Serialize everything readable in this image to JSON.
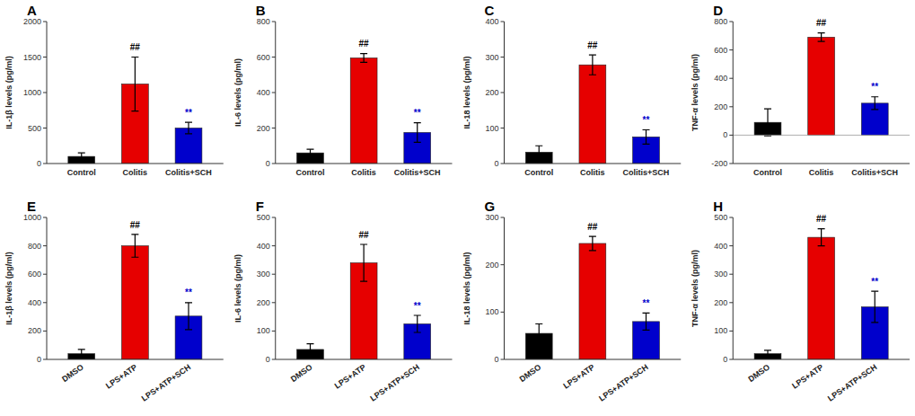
{
  "chart_data": [
    {
      "type": "bar",
      "title": "A",
      "ylabel": "IL-1β levels (pg/ml)",
      "categories": [
        "Control",
        "Colitis",
        "Colitis+SCH"
      ],
      "values": [
        100,
        1120,
        500
      ],
      "errors": [
        50,
        380,
        80
      ],
      "colors": [
        "#000000",
        "#e60000",
        "#0000cc"
      ],
      "annotations": [
        {
          "category": "Colitis",
          "text": "##",
          "color": "#000000"
        },
        {
          "category": "Colitis+SCH",
          "text": "**",
          "color": "#0000cc"
        }
      ],
      "ylim": [
        0,
        2000
      ],
      "yticks": [
        0,
        500,
        1000,
        1500,
        2000
      ],
      "grid": false
    },
    {
      "type": "bar",
      "title": "B",
      "ylabel": "IL-6 levels (pg/ml)",
      "categories": [
        "Control",
        "Colitis",
        "Colitis+SCH"
      ],
      "values": [
        60,
        595,
        175
      ],
      "errors": [
        20,
        25,
        55
      ],
      "colors": [
        "#000000",
        "#e60000",
        "#0000cc"
      ],
      "annotations": [
        {
          "category": "Colitis",
          "text": "##",
          "color": "#000000"
        },
        {
          "category": "Colitis+SCH",
          "text": "**",
          "color": "#0000cc"
        }
      ],
      "ylim": [
        0,
        800
      ],
      "yticks": [
        0,
        200,
        400,
        600,
        800
      ],
      "grid": false
    },
    {
      "type": "bar",
      "title": "C",
      "ylabel": "IL-18 levels (pg/ml)",
      "categories": [
        "Control",
        "Colitis",
        "Colitis+SCH"
      ],
      "values": [
        32,
        278,
        75
      ],
      "errors": [
        18,
        28,
        20
      ],
      "colors": [
        "#000000",
        "#e60000",
        "#0000cc"
      ],
      "annotations": [
        {
          "category": "Colitis",
          "text": "##",
          "color": "#000000"
        },
        {
          "category": "Colitis+SCH",
          "text": "**",
          "color": "#0000cc"
        }
      ],
      "ylim": [
        0,
        400
      ],
      "yticks": [
        0,
        100,
        200,
        300,
        400
      ],
      "grid": false
    },
    {
      "type": "bar",
      "title": "D",
      "ylabel": "TNF-α levels (pg/ml)",
      "categories": [
        "Control",
        "Colitis",
        "Colitis+SCH"
      ],
      "values": [
        90,
        690,
        225
      ],
      "errors": [
        95,
        30,
        45
      ],
      "colors": [
        "#000000",
        "#e60000",
        "#0000cc"
      ],
      "annotations": [
        {
          "category": "Colitis",
          "text": "##",
          "color": "#000000"
        },
        {
          "category": "Colitis+SCH",
          "text": "**",
          "color": "#0000cc"
        }
      ],
      "ylim": [
        -200,
        800
      ],
      "yticks": [
        -200,
        0,
        200,
        400,
        600,
        800
      ],
      "grid": false
    },
    {
      "type": "bar",
      "title": "E",
      "ylabel": "IL-1β levels (pg/ml)",
      "categories": [
        "DMSO",
        "LPS+ATP",
        "LPS+ATP+SCH"
      ],
      "values": [
        40,
        800,
        305
      ],
      "errors": [
        30,
        80,
        95
      ],
      "colors": [
        "#000000",
        "#e60000",
        "#0000cc"
      ],
      "annotations": [
        {
          "category": "LPS+ATP",
          "text": "##",
          "color": "#000000"
        },
        {
          "category": "LPS+ATP+SCH",
          "text": "**",
          "color": "#0000cc"
        }
      ],
      "ylim": [
        0,
        1000
      ],
      "yticks": [
        0,
        200,
        400,
        600,
        800,
        1000
      ],
      "grid": false
    },
    {
      "type": "bar",
      "title": "F",
      "ylabel": "IL-6 levels (pg/ml)",
      "categories": [
        "DMSO",
        "LPS+ATP",
        "LPS+ATP+SCH"
      ],
      "values": [
        35,
        340,
        125
      ],
      "errors": [
        20,
        65,
        30
      ],
      "colors": [
        "#000000",
        "#e60000",
        "#0000cc"
      ],
      "annotations": [
        {
          "category": "LPS+ATP",
          "text": "##",
          "color": "#000000"
        },
        {
          "category": "LPS+ATP+SCH",
          "text": "**",
          "color": "#0000cc"
        }
      ],
      "ylim": [
        0,
        500
      ],
      "yticks": [
        0,
        100,
        200,
        300,
        400,
        500
      ],
      "grid": false
    },
    {
      "type": "bar",
      "title": "G",
      "ylabel": "IL-18 levels (pg/ml)",
      "categories": [
        "DMSO",
        "LPS+ATP",
        "LPS+ATP+SCH"
      ],
      "values": [
        55,
        245,
        80
      ],
      "errors": [
        20,
        15,
        18
      ],
      "colors": [
        "#000000",
        "#e60000",
        "#0000cc"
      ],
      "annotations": [
        {
          "category": "LPS+ATP",
          "text": "##",
          "color": "#000000"
        },
        {
          "category": "LPS+ATP+SCH",
          "text": "**",
          "color": "#0000cc"
        }
      ],
      "ylim": [
        0,
        300
      ],
      "yticks": [
        0,
        100,
        200,
        300
      ],
      "grid": false
    },
    {
      "type": "bar",
      "title": "H",
      "ylabel": "TNF-α levels (pg/ml)",
      "categories": [
        "DMSO",
        "LPS+ATP",
        "LPS+ATP+SCH"
      ],
      "values": [
        20,
        430,
        185
      ],
      "errors": [
        12,
        30,
        55
      ],
      "colors": [
        "#000000",
        "#e60000",
        "#0000cc"
      ],
      "annotations": [
        {
          "category": "LPS+ATP",
          "text": "##",
          "color": "#000000"
        },
        {
          "category": "LPS+ATP+SCH",
          "text": "**",
          "color": "#0000cc"
        }
      ],
      "ylim": [
        0,
        500
      ],
      "yticks": [
        0,
        100,
        200,
        300,
        400,
        500
      ],
      "grid": false
    }
  ]
}
